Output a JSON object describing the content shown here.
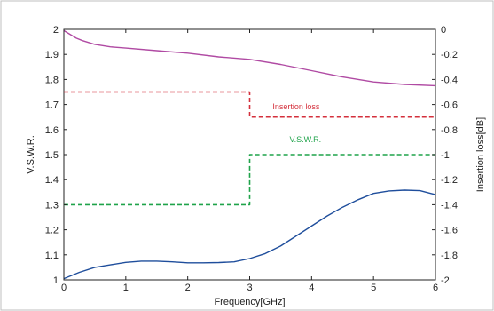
{
  "chart_data": {
    "type": "line",
    "xlabel": "Frequency[GHz]",
    "ylabel_left": "V.S.W.R.",
    "ylabel_right": "Insertion loss[dB]",
    "xlim": [
      0,
      6
    ],
    "ylim_left": [
      1,
      2
    ],
    "ylim_right": [
      -2,
      0
    ],
    "x_ticks": [
      0,
      1,
      2,
      3,
      4,
      5,
      6
    ],
    "y_ticks_left": [
      1,
      1.1,
      1.2,
      1.3,
      1.4,
      1.5,
      1.6,
      1.7,
      1.8,
      1.9,
      2
    ],
    "y_ticks_left_labels": [
      "1",
      "1.1",
      "1.2",
      "1.3",
      "1.4",
      "1.5",
      "1.6",
      "1.7",
      "1.8",
      "1.9",
      "2"
    ],
    "y_ticks_right": [
      0,
      -0.2,
      -0.4,
      -0.6,
      -0.8,
      -1,
      -1.2,
      -1.4,
      -1.6,
      -1.8,
      -2
    ],
    "y_ticks_right_labels": [
      "0",
      "-0.2",
      "-0.4",
      "-0.6",
      "-0.8",
      "-1",
      "-1.2",
      "-1.4",
      "-1.6",
      "-1.8",
      "-2"
    ],
    "grid": false,
    "series": [
      {
        "name": "Insertion loss",
        "axis": "right",
        "style": "solid",
        "color": "#b04aa3",
        "x": [
          0,
          0.1,
          0.2,
          0.3,
          0.5,
          0.75,
          1,
          1.5,
          2,
          2.5,
          3,
          3.5,
          4,
          4.5,
          5,
          5.5,
          6
        ],
        "y": [
          -0.01,
          -0.04,
          -0.07,
          -0.09,
          -0.12,
          -0.14,
          -0.15,
          -0.17,
          -0.19,
          -0.22,
          -0.24,
          -0.28,
          -0.33,
          -0.38,
          -0.42,
          -0.44,
          -0.45
        ]
      },
      {
        "name": "V.S.W.R.",
        "axis": "left",
        "style": "solid",
        "color": "#1f4e9c",
        "x": [
          0,
          0.25,
          0.5,
          0.75,
          1,
          1.25,
          1.5,
          1.75,
          2,
          2.25,
          2.5,
          2.75,
          3,
          3.25,
          3.5,
          3.75,
          4,
          4.25,
          4.5,
          4.75,
          5,
          5.25,
          5.5,
          5.75,
          6
        ],
        "y": [
          1.005,
          1.03,
          1.05,
          1.06,
          1.07,
          1.075,
          1.075,
          1.072,
          1.068,
          1.068,
          1.069,
          1.072,
          1.085,
          1.105,
          1.135,
          1.175,
          1.215,
          1.255,
          1.29,
          1.32,
          1.345,
          1.355,
          1.358,
          1.356,
          1.34
        ]
      },
      {
        "name": "Insertion loss",
        "axis": "right",
        "style": "dashed",
        "color": "#d4303c",
        "x": [
          0,
          3,
          3,
          6
        ],
        "y": [
          -0.5,
          -0.5,
          -0.7,
          -0.7
        ]
      },
      {
        "name": "V.S.W.R.",
        "axis": "left",
        "style": "dashed",
        "color": "#1fa34a",
        "x": [
          0,
          3,
          3,
          6
        ],
        "y": [
          1.3,
          1.3,
          1.5,
          1.5
        ]
      }
    ],
    "annotations": [
      {
        "text": "Insertion loss",
        "color": "#d4303c",
        "axis": "right",
        "x": 3.75,
        "y": -0.64
      },
      {
        "text": "V.S.W.R.",
        "color": "#1fa34a",
        "axis": "left",
        "x": 3.9,
        "y": 1.55
      }
    ]
  }
}
